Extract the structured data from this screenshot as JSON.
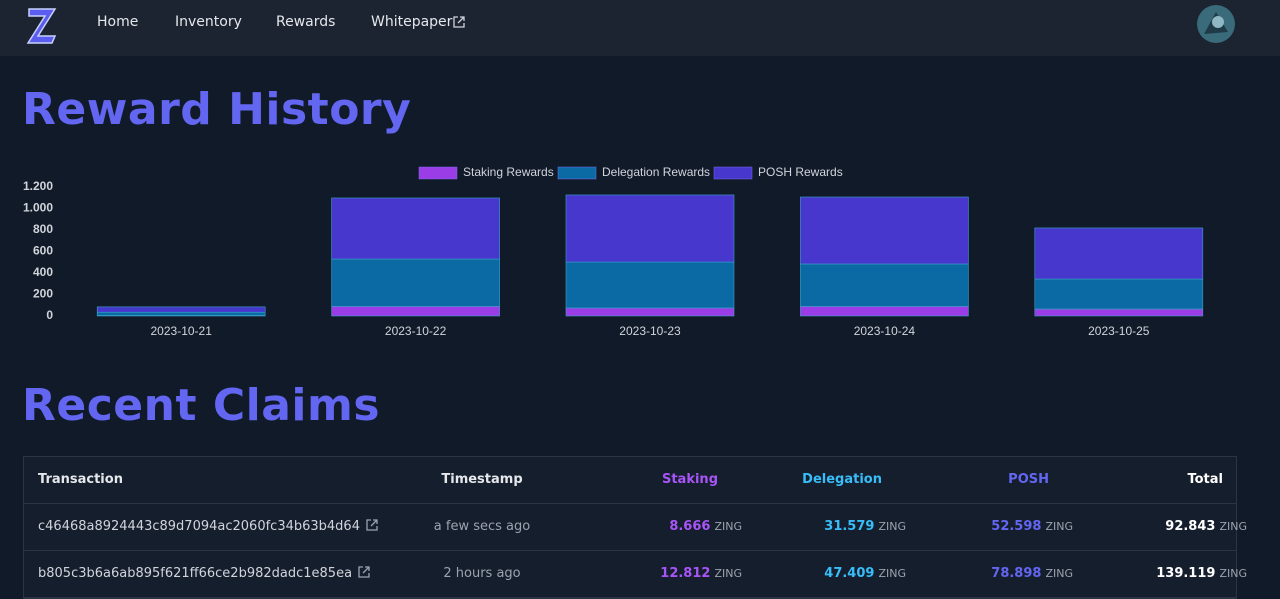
{
  "nav": {
    "links": [
      "Home",
      "Inventory",
      "Rewards",
      "Whitepaper"
    ]
  },
  "reward_history": {
    "title": "Reward History"
  },
  "chart_data": {
    "type": "stacked-bar",
    "categories": [
      "2023-10-21",
      "2023-10-22",
      "2023-10-23",
      "2023-10-24",
      "2023-10-25"
    ],
    "series": [
      {
        "name": "Staking Rewards",
        "color": "#9b3de6",
        "values": [
          5,
          90,
          75,
          90,
          65
        ]
      },
      {
        "name": "Delegation Rewards",
        "color": "#0b6aa3",
        "values": [
          30,
          440,
          427,
          394,
          279
        ]
      },
      {
        "name": "POSH Rewards",
        "color": "#4737cc",
        "values": [
          50,
          568,
          624,
          623,
          475
        ]
      }
    ],
    "ylim": [
      0,
      1200
    ],
    "yticks": [
      0,
      200,
      400,
      600,
      800,
      {
        "value": 1000,
        "label": "1.000"
      },
      {
        "value": 1200,
        "label": "1.200"
      }
    ],
    "legend": "top"
  },
  "recent_claims": {
    "title": "Recent Claims"
  },
  "table": {
    "columns": [
      "Transaction",
      "Timestamp",
      "Staking",
      "Delegation",
      "POSH",
      "Total"
    ],
    "unit": "ZING",
    "rows": [
      [
        "c46468a8924443c89d7094ac2060fc34b63b4d64",
        "a few secs ago",
        "8.666",
        "31.579",
        "52.598",
        "92.843"
      ],
      [
        "b805c3b6a6ab895f621ff66ce2b982dadc1e85ea",
        "2 hours ago",
        "12.812",
        "47.409",
        "78.898",
        "139.119"
      ]
    ]
  }
}
